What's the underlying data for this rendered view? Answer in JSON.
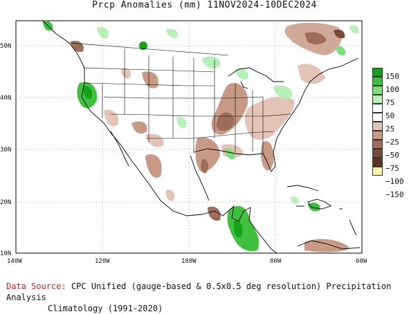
{
  "title": "Prcp Anomalies (mm) 11NOV2024-10DEC2024",
  "axes": {
    "lat_labels": [
      "50N",
      "40N",
      "30N",
      "20N",
      "10N"
    ],
    "lon_labels": [
      "140W",
      "120W",
      "100W",
      "80W",
      "60W"
    ]
  },
  "legend": {
    "labels": [
      "150",
      "100",
      "75",
      "50",
      "25",
      "−25",
      "−50",
      "−75",
      "−100",
      "−150"
    ],
    "colors": [
      "#16a216",
      "#3fc03f",
      "#7be07b",
      "#b5f0b5",
      "#ffffff",
      "#ffffff",
      "#e3c3b6",
      "#c89a86",
      "#9e6d5a",
      "#7a4a38",
      "#5e3424",
      "#fdf3a8"
    ]
  },
  "colors": {
    "wet1": "#b5f0b5",
    "wet2": "#7be07b",
    "wet3": "#3fc03f",
    "wet4": "#16a216",
    "dry1": "#e3c3b6",
    "dry2": "#c89a86",
    "dry3": "#9e6d5a"
  },
  "footer": {
    "source_label": "Data Source:",
    "source_text": "CPC Unified (gauge-based & 0.5x0.5 deg resolution) Precipitation Analysis",
    "climatology": "Climatology (1991-2020)"
  }
}
